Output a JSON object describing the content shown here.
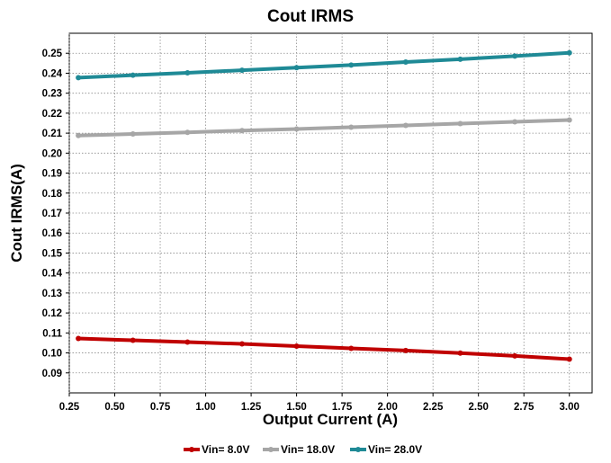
{
  "chart_data": {
    "type": "line",
    "title": "Cout IRMS",
    "xlabel": "Output Current (A)",
    "ylabel": "Cout IRMS(A)",
    "xlim": [
      0.25,
      3.125
    ],
    "ylim": [
      0.08,
      0.26
    ],
    "x_ticks": [
      "0.25",
      "0.50",
      "0.75",
      "1.00",
      "1.25",
      "1.50",
      "1.75",
      "2.00",
      "2.25",
      "2.50",
      "2.75",
      "3.00"
    ],
    "y_ticks": [
      "0.09",
      "0.10",
      "0.11",
      "0.12",
      "0.13",
      "0.14",
      "0.15",
      "0.16",
      "0.17",
      "0.18",
      "0.19",
      "0.20",
      "0.21",
      "0.22",
      "0.23",
      "0.24",
      "0.25"
    ],
    "x": [
      0.3,
      0.6,
      0.9,
      1.2,
      1.5,
      1.8,
      2.1,
      2.4,
      2.7,
      3.0
    ],
    "series": [
      {
        "name": "Vin= 8.0V",
        "color": "#c00000",
        "values": [
          0.1072,
          0.1063,
          0.1054,
          0.1045,
          0.1034,
          0.1023,
          0.1012,
          0.0999,
          0.0985,
          0.0969
        ]
      },
      {
        "name": "Vin= 18.0V",
        "color": "#a6a6a6",
        "values": [
          0.2088,
          0.2096,
          0.2104,
          0.2113,
          0.2121,
          0.213,
          0.2139,
          0.2148,
          0.2157,
          0.2166
        ]
      },
      {
        "name": "Vin= 28.0V",
        "color": "#1f8a96",
        "values": [
          0.2378,
          0.239,
          0.2402,
          0.2415,
          0.2428,
          0.2441,
          0.2456,
          0.247,
          0.2486,
          0.2502
        ]
      }
    ],
    "grid": true,
    "legend_position": "bottom"
  }
}
